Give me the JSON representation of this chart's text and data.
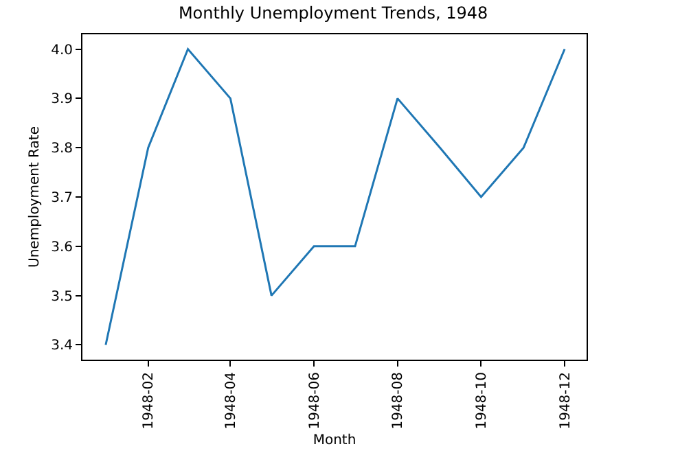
{
  "chart_data": {
    "type": "line",
    "title": "Monthly Unemployment Trends, 1948",
    "xlabel": "Month",
    "ylabel": "Unemployment Rate",
    "x": [
      "1948-01",
      "1948-02",
      "1948-03",
      "1948-04",
      "1948-05",
      "1948-06",
      "1948-07",
      "1948-08",
      "1948-09",
      "1948-10",
      "1948-11",
      "1948-12"
    ],
    "series": [
      {
        "color": "#1f77b4",
        "values": [
          3.4,
          3.8,
          4.0,
          3.9,
          3.5,
          3.6,
          3.6,
          3.9,
          3.8,
          3.7,
          3.8,
          4.0
        ]
      }
    ],
    "xlim": [
      "1947-12-15",
      "1948-12-17"
    ],
    "xticks": [
      "1948-02",
      "1948-04",
      "1948-06",
      "1948-08",
      "1948-10",
      "1948-12"
    ],
    "ylim": [
      3.37,
      4.03
    ],
    "yticks": [
      3.4,
      3.5,
      3.6,
      3.7,
      3.8,
      3.9,
      {
        "value": 4,
        "label": "4.0"
      }
    ],
    "line_style": "solid"
  }
}
